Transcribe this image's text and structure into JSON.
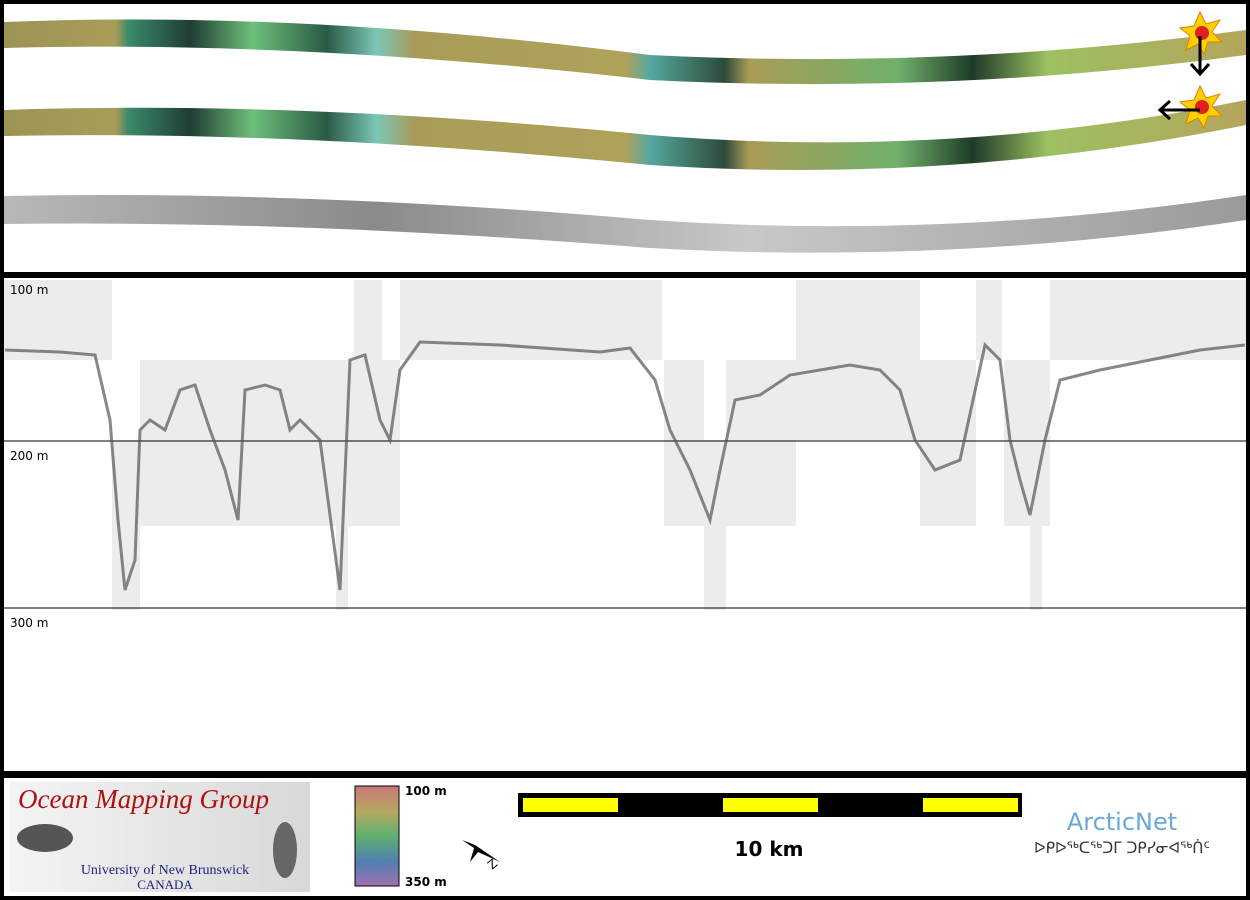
{
  "profile": {
    "depth_labels": [
      "100 m",
      "200 m",
      "300 m"
    ]
  },
  "footer": {
    "logo": {
      "title": "Ocean Mapping Group",
      "university": "University of New Brunswick",
      "country": "CANADA"
    },
    "colorbar": {
      "top": "100 m",
      "bottom": "350 m"
    },
    "scale_bar": "10 km",
    "partner": {
      "name": "ArcticNet",
      "syllabics": "ᐅᑭᐅᖅᑕᖅᑐᒥ ᑐᑭᓯᓂᐊᖅᑏᑦ"
    }
  }
}
